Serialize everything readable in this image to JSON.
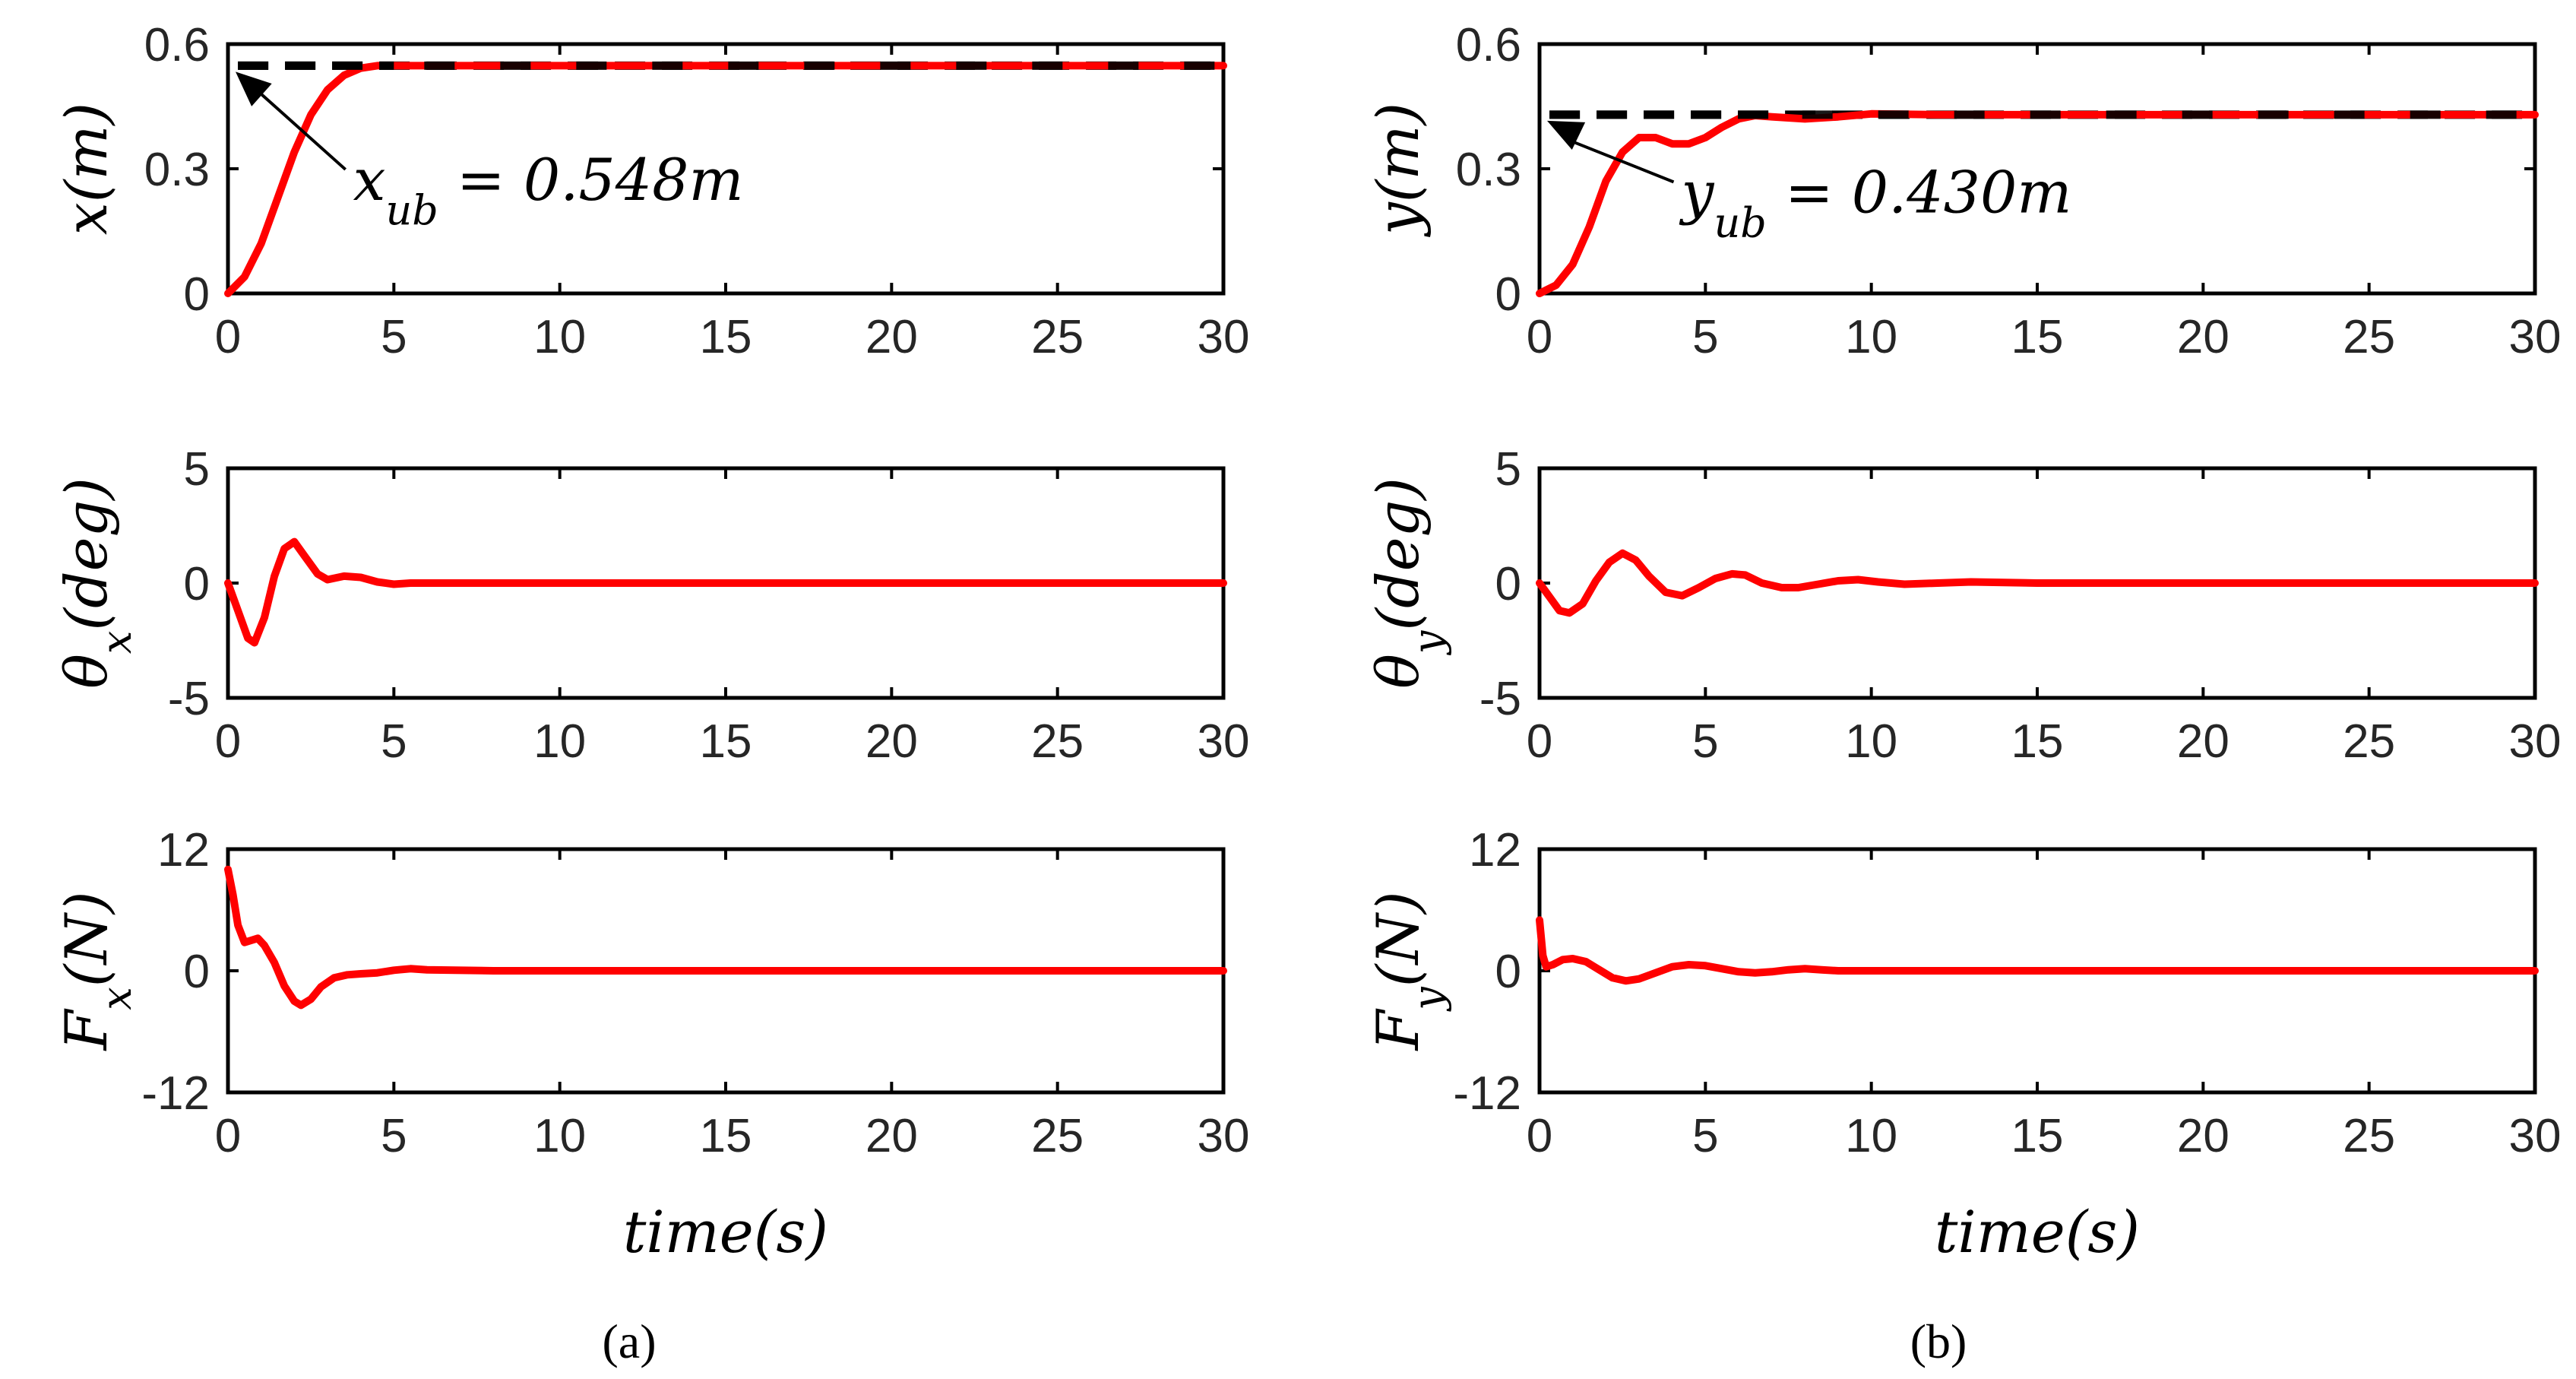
{
  "colors": {
    "response": "#ff0000",
    "bound": "#000000",
    "axes": "#000000"
  },
  "chart_data": [
    {
      "panel": "a",
      "row": 0,
      "type": "line",
      "ylabel": "x(m)",
      "xlabel": "",
      "xlim": [
        0,
        30
      ],
      "ylim": [
        0,
        0.6
      ],
      "xticks": [
        "0",
        "5",
        "10",
        "15",
        "20",
        "25",
        "30"
      ],
      "yticks": [
        "0",
        "0.3",
        "0.6"
      ],
      "bound": 0.548,
      "annotation": {
        "text": "x_ub = 0.548m",
        "pointTo": [
          0,
          0.548
        ],
        "anchor": [
          4,
          0.28
        ]
      },
      "series": [
        {
          "x": [
            0,
            0.5,
            1,
            1.5,
            2,
            2.5,
            3,
            3.5,
            4,
            4.5,
            5,
            6,
            8,
            10,
            15,
            20,
            25,
            30
          ],
          "y": [
            0,
            0.04,
            0.12,
            0.23,
            0.34,
            0.43,
            0.49,
            0.525,
            0.542,
            0.548,
            0.548,
            0.548,
            0.548,
            0.548,
            0.548,
            0.548,
            0.548,
            0.548
          ]
        }
      ]
    },
    {
      "panel": "a",
      "row": 1,
      "type": "line",
      "ylabel": "θx(deg)",
      "xlabel": "",
      "xlim": [
        0,
        30
      ],
      "ylim": [
        -5,
        5
      ],
      "xticks": [
        "0",
        "5",
        "10",
        "15",
        "20",
        "25",
        "30"
      ],
      "yticks": [
        "-5",
        "0",
        "5"
      ],
      "series": [
        {
          "x": [
            0,
            0.3,
            0.6,
            0.8,
            1.1,
            1.4,
            1.7,
            2.0,
            2.3,
            2.7,
            3.0,
            3.5,
            4.0,
            4.5,
            5.0,
            5.5,
            6,
            10,
            20,
            30
          ],
          "y": [
            0,
            -1.2,
            -2.4,
            -2.6,
            -1.5,
            0.3,
            1.5,
            1.8,
            1.2,
            0.4,
            0.15,
            0.3,
            0.25,
            0.05,
            -0.05,
            0,
            0,
            0,
            0,
            0
          ]
        }
      ]
    },
    {
      "panel": "a",
      "row": 2,
      "type": "line",
      "ylabel": "Fx(N)",
      "xlabel": "time(s)",
      "xlim": [
        0,
        30
      ],
      "ylim": [
        -12,
        12
      ],
      "xticks": [
        "0",
        "5",
        "10",
        "15",
        "20",
        "25",
        "30"
      ],
      "yticks": [
        "-12",
        "0",
        "12"
      ],
      "series": [
        {
          "x": [
            0,
            0.15,
            0.3,
            0.5,
            0.7,
            0.9,
            1.1,
            1.4,
            1.7,
            2.0,
            2.2,
            2.5,
            2.8,
            3.2,
            3.6,
            4,
            4.5,
            5,
            5.5,
            6,
            8,
            10,
            20,
            30
          ],
          "y": [
            10,
            7.5,
            4.5,
            2.8,
            3.0,
            3.2,
            2.5,
            0.8,
            -1.5,
            -3.0,
            -3.4,
            -2.8,
            -1.6,
            -0.7,
            -0.4,
            -0.3,
            -0.2,
            0.05,
            0.2,
            0.1,
            0,
            0,
            0,
            0
          ]
        }
      ]
    },
    {
      "panel": "b",
      "row": 0,
      "type": "line",
      "ylabel": "y(m)",
      "xlabel": "",
      "xlim": [
        0,
        30
      ],
      "ylim": [
        0,
        0.6
      ],
      "xticks": [
        "0",
        "5",
        "10",
        "15",
        "20",
        "25",
        "30"
      ],
      "yticks": [
        "0",
        "0.3",
        "0.6"
      ],
      "bound": 0.43,
      "annotation": {
        "text": "y_ub = 0.430m",
        "pointTo": [
          0,
          0.43
        ],
        "anchor": [
          4.5,
          0.25
        ]
      },
      "series": [
        {
          "x": [
            0,
            0.5,
            1,
            1.5,
            2,
            2.5,
            3,
            3.5,
            4,
            4.5,
            5,
            5.5,
            6,
            6.5,
            7,
            8,
            9,
            10,
            12,
            15,
            20,
            30
          ],
          "y": [
            0,
            0.02,
            0.07,
            0.16,
            0.27,
            0.34,
            0.375,
            0.375,
            0.36,
            0.36,
            0.375,
            0.4,
            0.42,
            0.428,
            0.425,
            0.42,
            0.425,
            0.432,
            0.43,
            0.43,
            0.43,
            0.43
          ]
        }
      ]
    },
    {
      "panel": "b",
      "row": 1,
      "type": "line",
      "ylabel": "θy(deg)",
      "xlabel": "",
      "xlim": [
        0,
        30
      ],
      "ylim": [
        -5,
        5
      ],
      "xticks": [
        "0",
        "5",
        "10",
        "15",
        "20",
        "25",
        "30"
      ],
      "yticks": [
        "-5",
        "0",
        "5"
      ],
      "series": [
        {
          "x": [
            0,
            0.3,
            0.6,
            0.9,
            1.3,
            1.7,
            2.1,
            2.5,
            2.9,
            3.3,
            3.8,
            4.3,
            4.8,
            5.3,
            5.8,
            6.2,
            6.7,
            7.3,
            7.8,
            8.4,
            9.0,
            9.6,
            10.2,
            11,
            12,
            13,
            15,
            20,
            30
          ],
          "y": [
            0,
            -0.6,
            -1.2,
            -1.3,
            -0.9,
            0.1,
            0.9,
            1.3,
            1.0,
            0.3,
            -0.4,
            -0.55,
            -0.2,
            0.2,
            0.4,
            0.35,
            0.0,
            -0.2,
            -0.2,
            -0.05,
            0.1,
            0.15,
            0.05,
            -0.05,
            0,
            0.05,
            0,
            0,
            0
          ]
        }
      ]
    },
    {
      "panel": "b",
      "row": 2,
      "type": "line",
      "ylabel": "Fy(N)",
      "xlabel": "time(s)",
      "xlim": [
        0,
        30
      ],
      "ylim": [
        -12,
        12
      ],
      "xticks": [
        "0",
        "5",
        "10",
        "15",
        "20",
        "25",
        "30"
      ],
      "yticks": [
        "-12",
        "0",
        "12"
      ],
      "series": [
        {
          "x": [
            0,
            0.1,
            0.2,
            0.4,
            0.7,
            1.0,
            1.4,
            1.8,
            2.2,
            2.6,
            3.0,
            3.5,
            4.0,
            4.5,
            5.0,
            5.5,
            6.0,
            6.5,
            7,
            7.5,
            8,
            8.5,
            9,
            10,
            12,
            15,
            20,
            30
          ],
          "y": [
            5,
            1.5,
            0.4,
            0.6,
            1.1,
            1.2,
            0.9,
            0.1,
            -0.7,
            -1.0,
            -0.8,
            -0.2,
            0.4,
            0.6,
            0.5,
            0.2,
            -0.1,
            -0.2,
            -0.1,
            0.1,
            0.2,
            0.1,
            0,
            0,
            0,
            0,
            0,
            0
          ]
        }
      ]
    }
  ],
  "panel_labels": [
    "(a)",
    "(b)"
  ]
}
